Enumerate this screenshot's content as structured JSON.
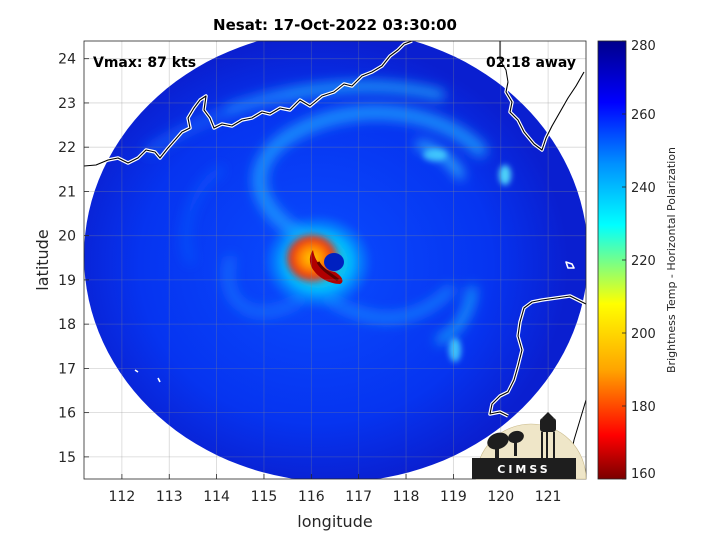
{
  "title": "Nesat: 17-Oct-2022 03:30:00",
  "vmax_label": "Vmax: 87 kts",
  "time_away_label": "02:18 away",
  "xlabel": "longitude",
  "ylabel": "latitude",
  "x_ticks": [
    "112",
    "113",
    "114",
    "115",
    "116",
    "117",
    "118",
    "119",
    "120",
    "121"
  ],
  "y_ticks": [
    "15",
    "16",
    "17",
    "18",
    "19",
    "20",
    "21",
    "22",
    "23",
    "24"
  ],
  "xlim": [
    111.2,
    121.8
  ],
  "ylim": [
    14.5,
    24.4
  ],
  "colorbar": {
    "label": "Brightness Temp - Horizontal Polarization",
    "ticks": [
      "160",
      "180",
      "200",
      "220",
      "240",
      "260",
      "280"
    ],
    "range": [
      160,
      280
    ],
    "colors": [
      "#7a0000",
      "#ff0000",
      "#ffa500",
      "#ffff00",
      "#00ffff",
      "#0080ff",
      "#0000ff",
      "#00008b"
    ]
  },
  "storm_center": {
    "lon": 116.25,
    "lat": 19.35
  },
  "logo_text": "CIMSS"
}
